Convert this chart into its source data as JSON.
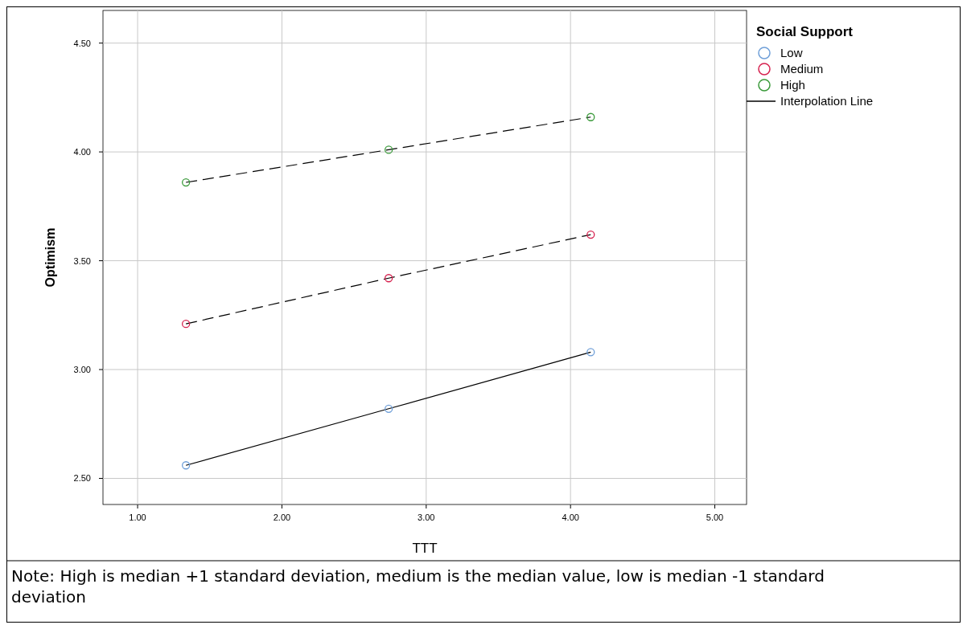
{
  "chart_data": {
    "type": "scatter",
    "xlabel": "TTT",
    "ylabel": "Optimism",
    "legend_title": "Social Support",
    "legend": "top right",
    "grid": true,
    "marker": "circle",
    "xlim": [
      0.76,
      5.22
    ],
    "ylim": [
      2.38,
      4.65
    ],
    "xticks": [
      {
        "value": 1,
        "label": "1.00"
      },
      {
        "value": 2,
        "label": "2.00"
      },
      {
        "value": 3,
        "label": "3.00"
      },
      {
        "value": 4,
        "label": "4.00"
      },
      {
        "value": 5,
        "label": "5.00"
      }
    ],
    "yticks": [
      {
        "value": 2.5,
        "label": "2.50"
      },
      {
        "value": 3,
        "label": "3.00"
      },
      {
        "value": 3.5,
        "label": "3.50"
      },
      {
        "value": 4,
        "label": "4.00"
      },
      {
        "value": 4.5,
        "label": "4.50"
      }
    ],
    "series": [
      {
        "name": "Low",
        "color": "#6f9fd8",
        "x": [
          1.335,
          2.74,
          4.14
        ],
        "values": [
          2.56,
          2.82,
          3.08
        ]
      },
      {
        "name": "Medium",
        "color": "#d6224f",
        "x": [
          1.335,
          2.74,
          4.14
        ],
        "values": [
          3.21,
          3.42,
          3.62
        ]
      },
      {
        "name": "High",
        "color": "#3a9a3a",
        "x": [
          1.335,
          2.74,
          4.14
        ],
        "values": [
          3.86,
          4.01,
          4.16
        ]
      },
      {
        "name": "Interpolation Line",
        "type": "line",
        "color": "#000000",
        "line_style": "solid",
        "marker": "none",
        "x": [
          1.335,
          2.74,
          4.14
        ],
        "values": [
          2.56,
          2.82,
          3.08
        ]
      },
      {
        "type": "line",
        "color": "#000000",
        "line_style": "dashed",
        "marker": "none",
        "x": [
          1.335,
          2.74,
          4.14
        ],
        "values": [
          3.21,
          3.42,
          3.62
        ]
      },
      {
        "type": "line",
        "color": "#000000",
        "line_style": "dashed",
        "marker": "none",
        "x": [
          1.335,
          2.74,
          4.14
        ],
        "values": [
          3.86,
          4.01,
          4.16
        ]
      }
    ],
    "annotations": [
      "Note: High is median +1 standard deviation, medium is the median value, low is median -1 standard deviation"
    ]
  }
}
